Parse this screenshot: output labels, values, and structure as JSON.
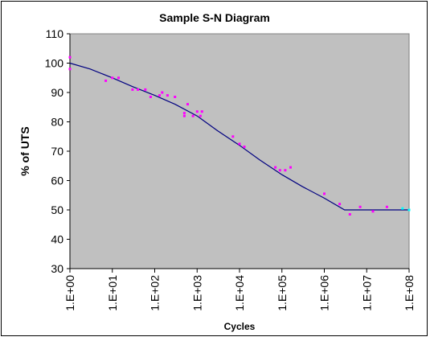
{
  "chart_data": {
    "type": "scatter",
    "title": "Sample S-N Diagram",
    "xlabel": "Cycles",
    "ylabel": "% of UTS",
    "x_scale": "log10",
    "xlim": [
      1,
      100000000
    ],
    "ylim": [
      30,
      110
    ],
    "y_ticks": [
      30,
      40,
      50,
      60,
      70,
      80,
      90,
      100,
      110
    ],
    "x_ticks": [
      1,
      10,
      100,
      1000,
      10000,
      100000,
      1000000,
      10000000,
      100000000
    ],
    "x_tick_labels": [
      "1.E+00",
      "1.E+01",
      "1.E+02",
      "1.E+03",
      "1.E+04",
      "1.E+05",
      "1.E+06",
      "1.E+07",
      "1.E+08"
    ],
    "grid": false,
    "legend": "none",
    "plot_background": "#c0c0c0",
    "series": [
      {
        "kind": "line",
        "color": "#000080",
        "x": [
          1,
          3,
          10,
          30,
          100,
          300,
          1000,
          3000,
          10000,
          30000,
          100000,
          300000,
          1000000,
          3000000,
          100000000
        ],
        "y": [
          100,
          98,
          95,
          92,
          89,
          86,
          82,
          77,
          72,
          67,
          62,
          58,
          54,
          50,
          50
        ]
      },
      {
        "kind": "scatter",
        "color": "#ff00ff",
        "x": [
          1,
          1,
          7,
          10,
          14,
          30,
          40,
          60,
          80,
          130,
          150,
          200,
          300,
          500,
          500,
          600,
          800,
          1000,
          1200,
          1300,
          7000,
          10000,
          13000,
          70000,
          90000,
          120000,
          160000,
          1000000,
          2300000,
          4000000,
          7000000,
          14000000,
          30000000
        ],
        "y": [
          102,
          98,
          94,
          95,
          95,
          91,
          91,
          91,
          88.5,
          89,
          90,
          89,
          88.5,
          83,
          82,
          86,
          82,
          83.5,
          82,
          83.5,
          75,
          72.5,
          71.5,
          64.5,
          63.5,
          63.5,
          64.5,
          55.5,
          52,
          48.5,
          51,
          49.5,
          51
        ]
      },
      {
        "kind": "scatter",
        "color": "#00ffff",
        "x": [
          70000000,
          100000000
        ],
        "y": [
          50.5,
          50
        ]
      }
    ]
  }
}
